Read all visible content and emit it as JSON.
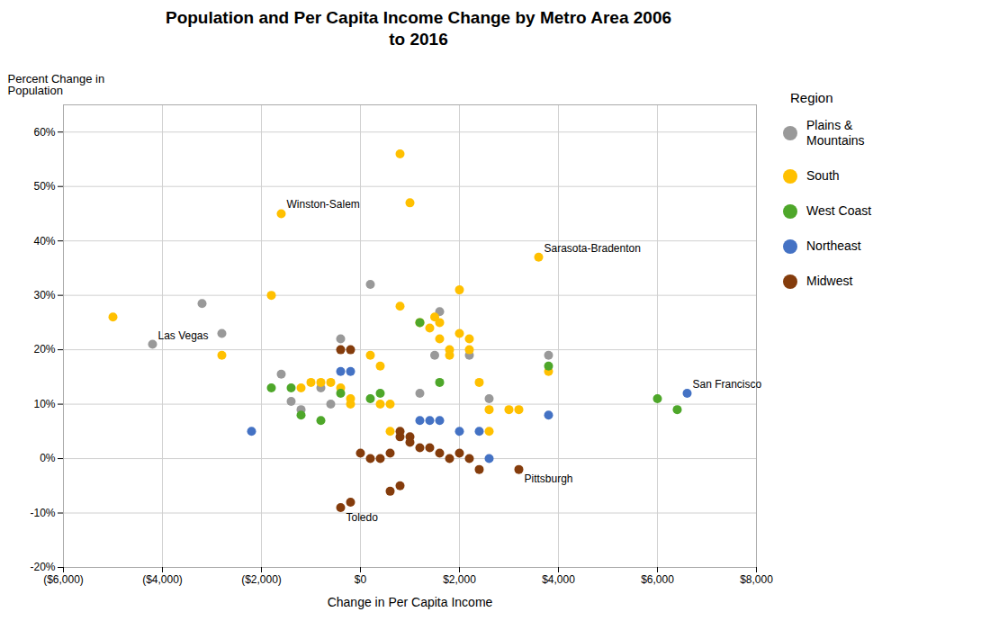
{
  "chart_data": {
    "type": "scatter",
    "title": "Population and Per Capita Income Change by Metro Area 2006\nto 2016",
    "xlabel": "Change in Per Capita Income",
    "ylabel": "Percent Change in\nPopulation",
    "legend_title": "Region",
    "legend": "right",
    "grid": true,
    "xlim": [
      -6000,
      8000
    ],
    "ylim": [
      -0.2,
      0.65
    ],
    "xticks": [
      {
        "value": -6000,
        "label": "($6,000)"
      },
      {
        "value": -4000,
        "label": "($4,000)"
      },
      {
        "value": -2000,
        "label": "($2,000)"
      },
      {
        "value": 0,
        "label": "$0"
      },
      {
        "value": 2000,
        "label": "$2,000"
      },
      {
        "value": 4000,
        "label": "$4,000"
      },
      {
        "value": 6000,
        "label": "$6,000"
      },
      {
        "value": 8000,
        "label": "$8,000"
      }
    ],
    "yticks": [
      {
        "value": -0.2,
        "label": "-20%"
      },
      {
        "value": -0.1,
        "label": "-10%"
      },
      {
        "value": 0.0,
        "label": "0%"
      },
      {
        "value": 0.1,
        "label": "10%"
      },
      {
        "value": 0.2,
        "label": "20%"
      },
      {
        "value": 0.3,
        "label": "30%"
      },
      {
        "value": 0.4,
        "label": "40%"
      },
      {
        "value": 0.5,
        "label": "50%"
      },
      {
        "value": 0.6,
        "label": "60%"
      }
    ],
    "series": [
      {
        "name": "Plains &\nMountains",
        "color": "#999999",
        "x": [
          -4200,
          -3200,
          -2800,
          -1600,
          -1400,
          -1200,
          -800,
          -600,
          -400,
          200,
          1200,
          1500,
          1600,
          2200,
          3800,
          2600
        ],
        "values": [
          0.21,
          0.285,
          0.23,
          0.155,
          0.105,
          0.09,
          0.13,
          0.1,
          0.22,
          0.32,
          0.12,
          0.19,
          0.27,
          0.19,
          0.19,
          0.11
        ]
      },
      {
        "name": "South",
        "color": "#FFC000",
        "x": [
          -5000,
          -2800,
          -1800,
          -1200,
          -1000,
          -800,
          -600,
          -400,
          -200,
          -200,
          -1600,
          200,
          400,
          400,
          600,
          600,
          800,
          1000,
          800,
          1200,
          1400,
          1500,
          1600,
          1600,
          1800,
          1800,
          2000,
          2000,
          2200,
          2200,
          2400,
          2600,
          2600,
          3000,
          3200,
          3600,
          3800
        ],
        "values": [
          0.26,
          0.19,
          0.3,
          0.13,
          0.14,
          0.14,
          0.14,
          0.13,
          0.1,
          0.11,
          0.45,
          0.19,
          0.17,
          0.1,
          0.05,
          0.1,
          0.28,
          0.47,
          0.56,
          0.25,
          0.24,
          0.26,
          0.22,
          0.25,
          0.19,
          0.2,
          0.31,
          0.23,
          0.2,
          0.22,
          0.14,
          0.05,
          0.09,
          0.09,
          0.09,
          0.37,
          0.16
        ]
      },
      {
        "name": "West Coast",
        "color": "#4EA72A",
        "x": [
          -1800,
          -1400,
          -1200,
          -800,
          -400,
          200,
          400,
          1200,
          1600,
          3800,
          6000,
          6400
        ],
        "values": [
          0.13,
          0.13,
          0.08,
          0.07,
          0.12,
          0.11,
          0.12,
          0.25,
          0.14,
          0.17,
          0.11,
          0.09
        ]
      },
      {
        "name": "Northeast",
        "color": "#4472C4",
        "x": [
          -2200,
          -400,
          -200,
          1200,
          1400,
          1600,
          2000,
          2400,
          2600,
          3800,
          6600
        ],
        "values": [
          0.05,
          0.16,
          0.16,
          0.07,
          0.07,
          0.07,
          0.05,
          0.05,
          0.0,
          0.08,
          0.12
        ]
      },
      {
        "name": "Midwest",
        "color": "#843C0C",
        "x": [
          -400,
          -200,
          0,
          200,
          400,
          600,
          800,
          800,
          1000,
          1000,
          1200,
          1400,
          1600,
          1800,
          2000,
          2200,
          2400,
          800,
          600,
          -200,
          -400,
          3200
        ],
        "values": [
          0.2,
          0.2,
          0.01,
          0.0,
          0.0,
          0.01,
          0.04,
          0.05,
          0.04,
          0.03,
          0.02,
          0.02,
          0.01,
          0.0,
          0.01,
          0.0,
          -0.02,
          -0.05,
          -0.06,
          -0.08,
          -0.09,
          -0.02
        ]
      }
    ],
    "annotations": [
      {
        "text": "Winston-Salem",
        "x": -1600,
        "y": 0.45
      },
      {
        "text": "Las Vegas",
        "x": -4200,
        "y": 0.21
      },
      {
        "text": "Sarasota-Bradenton",
        "x": 3600,
        "y": 0.37
      },
      {
        "text": "Pittsburgh",
        "x": 3200,
        "y": -0.02
      },
      {
        "text": "Toledo",
        "x": -400,
        "y": -0.09
      },
      {
        "text": "San Francisco",
        "x": 6600,
        "y": 0.12
      }
    ]
  }
}
